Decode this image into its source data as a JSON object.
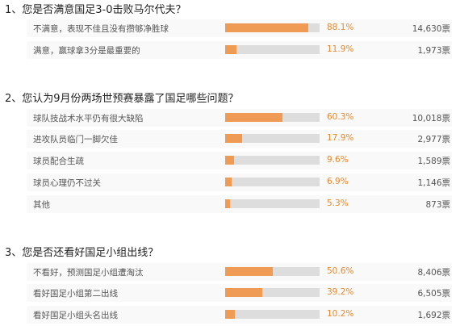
{
  "accent_color": "#ef9a55",
  "percent_color": "#e8892e",
  "track_color": "#dddddd",
  "questions": [
    {
      "title": "1、您是否满意国足3-0击败马尔代夫？",
      "options": [
        {
          "label": "不满意，表现不佳且没有攒够净胜球",
          "percent": "88.1%",
          "fill": 0.881,
          "votes": "14,630票"
        },
        {
          "label": "满意，赢球拿3分是最重要的",
          "percent": "11.9%",
          "fill": 0.119,
          "votes": "1,973票"
        }
      ]
    },
    {
      "title": "2、您认为9月份两场世预赛暴露了国足哪些问题？",
      "options": [
        {
          "label": "球队技战术水平仍有很大缺陷",
          "percent": "60.3%",
          "fill": 0.603,
          "votes": "10,018票"
        },
        {
          "label": "进攻队员临门一脚欠佳",
          "percent": "17.9%",
          "fill": 0.179,
          "votes": "2,977票"
        },
        {
          "label": "球员配合生疏",
          "percent": "9.6%",
          "fill": 0.096,
          "votes": "1,589票"
        },
        {
          "label": "球员心理仍不过关",
          "percent": "6.9%",
          "fill": 0.069,
          "votes": "1,146票"
        },
        {
          "label": "其他",
          "percent": "5.3%",
          "fill": 0.053,
          "votes": "873票"
        }
      ]
    },
    {
      "title": "3、您是否还看好国足小组出线？",
      "options": [
        {
          "label": "不看好，预测国足小组遭淘汰",
          "percent": "50.6%",
          "fill": 0.506,
          "votes": "8,406票"
        },
        {
          "label": "看好国足小组第二出线",
          "percent": "39.2%",
          "fill": 0.392,
          "votes": "6,505票"
        },
        {
          "label": "看好国足小组头名出线",
          "percent": "10.2%",
          "fill": 0.102,
          "votes": "1,692票"
        }
      ]
    }
  ]
}
